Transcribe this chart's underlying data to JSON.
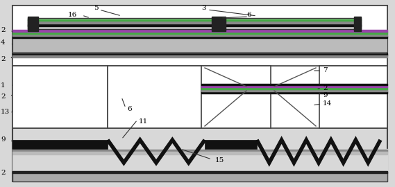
{
  "fig_width": 5.69,
  "fig_height": 2.7,
  "bg_color": "#d8d8d8",
  "white": "#ffffff",
  "black": "#111111",
  "gray_light": "#bbbbbb",
  "gray_med": "#888888",
  "green": "#44aa44",
  "purple": "#9955aa",
  "border_lw": 1.2,
  "layer_lw": 0.8
}
